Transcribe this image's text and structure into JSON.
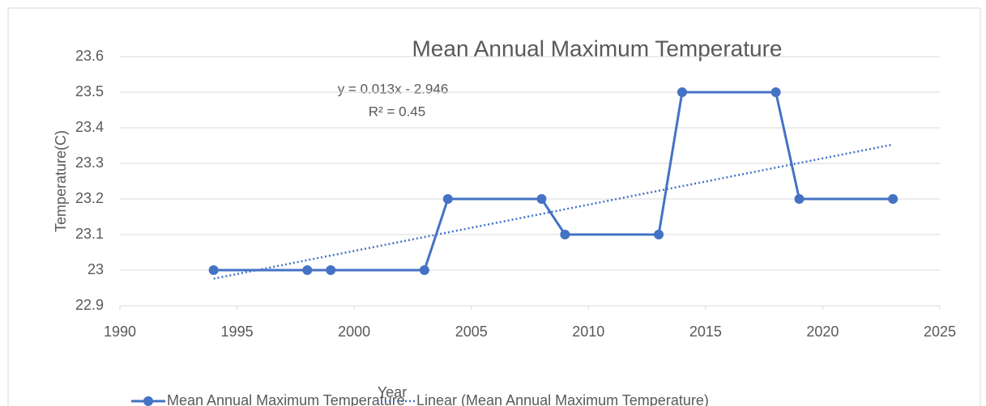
{
  "chart_data": {
    "type": "line",
    "title": "Mean Annual Maximum Temperature",
    "x_label": "Year",
    "y_label": "Temperature(C)",
    "annotations": [
      "y = 0.013x - 2.946",
      "R² = 0.45"
    ],
    "xlim": [
      1990,
      2025
    ],
    "xticks": [
      1990,
      1995,
      2000,
      2005,
      2010,
      2015,
      2020,
      2025
    ],
    "ylim": [
      22.9,
      23.6
    ],
    "yticks": [
      22.9,
      23,
      23.1,
      23.2,
      23.3,
      23.4,
      23.5,
      23.6
    ],
    "grid": true,
    "legend": "bottom",
    "series": [
      {
        "name": "Mean Annual Maximum Temperature",
        "color": "#4472c4",
        "style": "solid",
        "x": [
          1994,
          1998,
          1999,
          2003,
          2004,
          2008,
          2009,
          2013,
          2014,
          2018,
          2019,
          2023
        ],
        "values": [
          23.0,
          23.0,
          23.0,
          23.0,
          23.2,
          23.2,
          23.1,
          23.1,
          23.5,
          23.5,
          23.2,
          23.2
        ]
      },
      {
        "name": "Linear (Mean Annual Maximum Temperature)",
        "color": "#4472c4",
        "style": "dotted",
        "x": [
          1994,
          2023
        ],
        "values": [
          22.976,
          23.353
        ]
      }
    ]
  }
}
